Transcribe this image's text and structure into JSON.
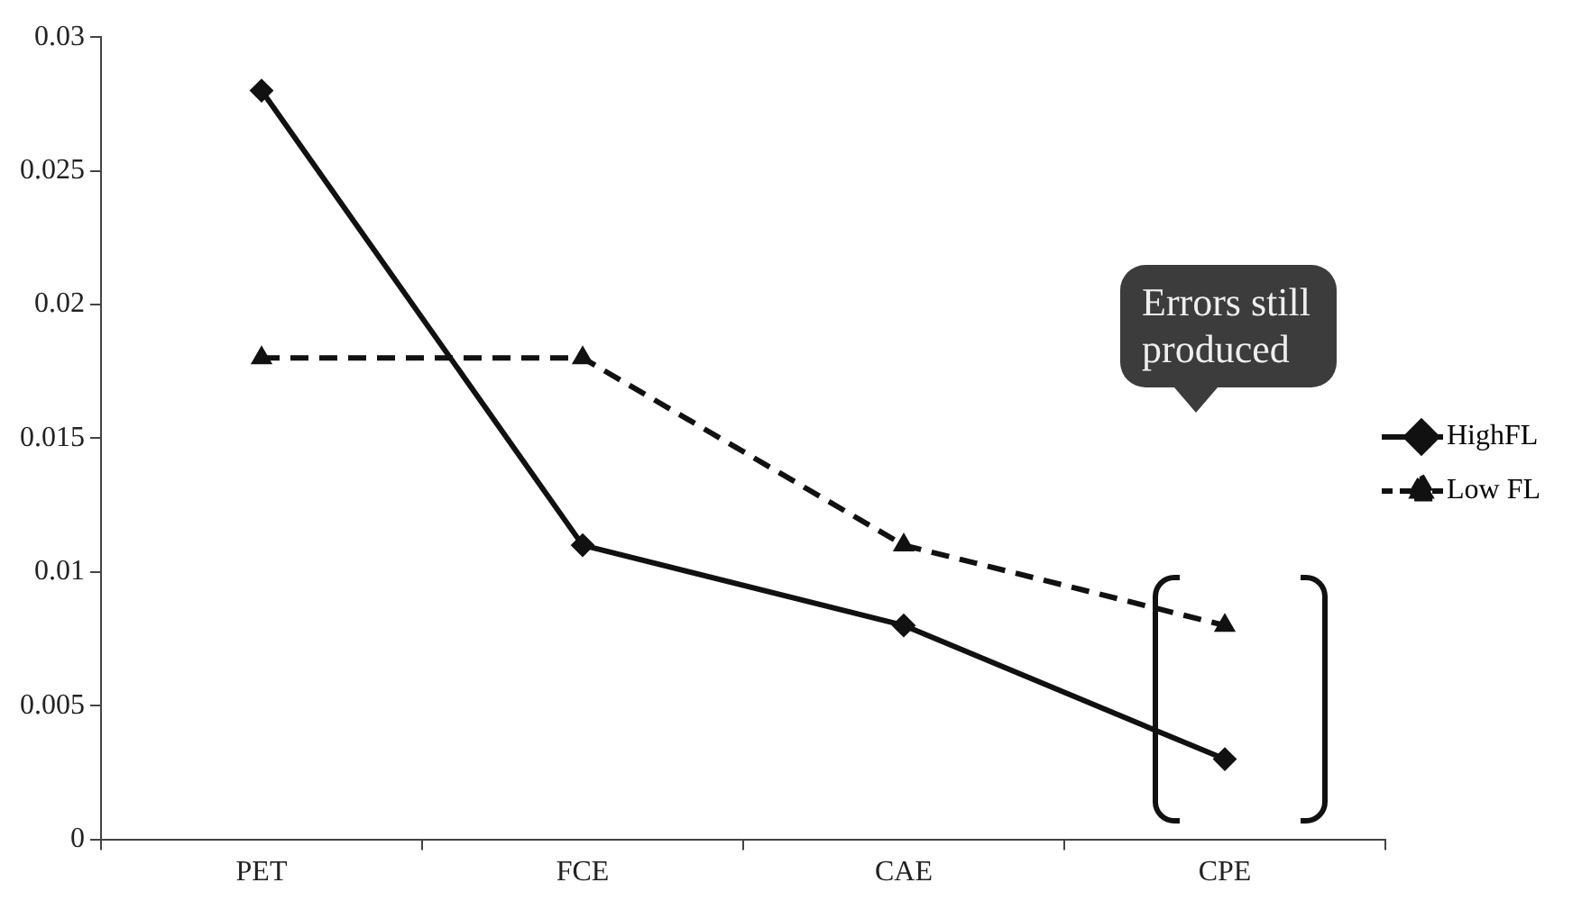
{
  "chart_data": {
    "type": "line",
    "categories": [
      "PET",
      "FCE",
      "CAE",
      "CPE"
    ],
    "series": [
      {
        "name": "HighFL",
        "color": "#111111",
        "values": [
          0.028,
          0.011,
          0.008,
          0.003
        ],
        "marker": "diamond",
        "line_style": "solid"
      },
      {
        "name": "Low FL",
        "color": "#111111",
        "values": [
          0.018,
          0.018,
          0.011,
          0.008
        ],
        "marker": "triangle",
        "line_style": "dashed"
      }
    ],
    "ylim": [
      0,
      0.03
    ],
    "yticks": [
      0,
      0.005,
      0.01,
      0.015,
      0.02,
      0.025,
      0.03
    ],
    "grid": false,
    "legend": "right",
    "annotations": [
      "Errors still produced"
    ]
  }
}
